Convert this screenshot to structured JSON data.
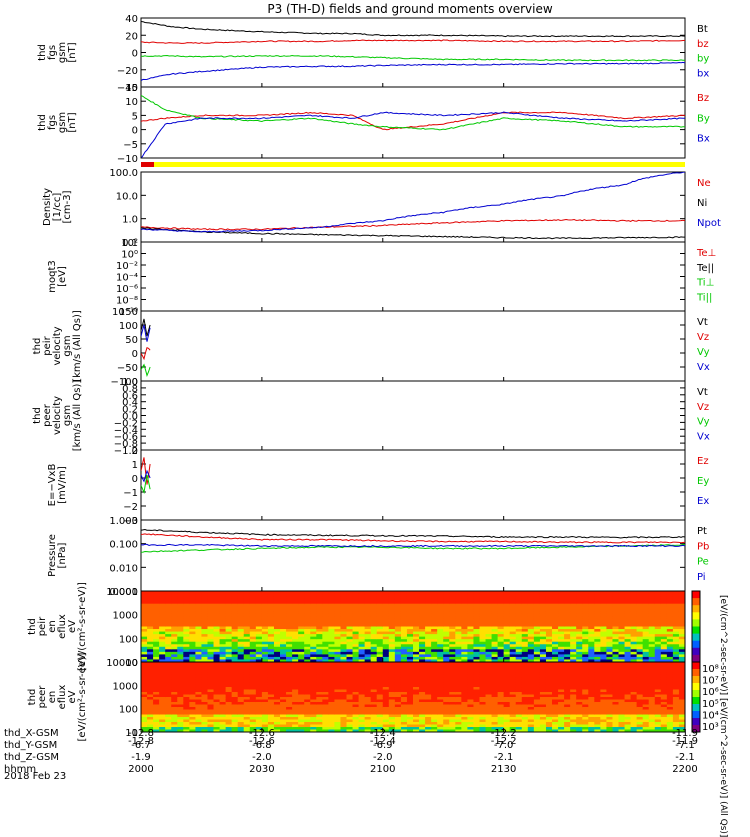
{
  "title": "P3 (TH-D) fields and ground moments overview",
  "date_label": "2018 Feb 23",
  "colorbar_label": "[eV/(cm^2-sec-sr-eV)] [eV/(cm^2-sec-sr-eV)] (All Qs)]",
  "x_axis": {
    "ticks": [
      -12.8,
      -12.6,
      -12.4,
      -12.2,
      -11.9
    ],
    "ephemeris": [
      {
        "name": "thd_X-GSM",
        "values": [
          "-12.8",
          "-12.6",
          "-12.4",
          "-12.2",
          "-11.9"
        ]
      },
      {
        "name": "thd_Y-GSM",
        "values": [
          "-6.7",
          "-6.8",
          "-6.9",
          "-7.0",
          "-7.1"
        ]
      },
      {
        "name": "thd_Z-GSM",
        "values": [
          "-1.9",
          "-2.0",
          "-2.0",
          "-2.1",
          "-2.1"
        ]
      },
      {
        "name": "hhmm",
        "values": [
          "2000",
          "2030",
          "2100",
          "2130",
          "2200"
        ]
      }
    ]
  },
  "colors": {
    "black": "#000000",
    "red": "#e00000",
    "green": "#00c800",
    "blue": "#0000d0",
    "yellow": "#ffff00"
  },
  "chart_data": [
    {
      "type": "line",
      "panel": "fgs_gsm_1",
      "ylabel": [
        "thd",
        "fgs",
        "gsm",
        "[nT]"
      ],
      "ylim": [
        -40,
        40
      ],
      "yticks": [
        "40",
        "20",
        "0",
        "−20",
        "−40"
      ],
      "x": [
        -12.8,
        -12.75,
        -12.7,
        -12.6,
        -12.5,
        -12.45,
        -12.4,
        -12.3,
        -12.2,
        -12.1,
        -12.0,
        -11.9
      ],
      "series": [
        {
          "name": "Bt",
          "color": "black",
          "values": [
            36,
            30,
            27,
            24,
            22,
            22,
            20,
            20,
            19,
            19,
            19,
            19
          ]
        },
        {
          "name": "bz",
          "color": "red",
          "values": [
            12,
            11,
            11,
            13,
            13,
            14,
            14,
            14,
            13,
            13,
            13,
            14
          ]
        },
        {
          "name": "by",
          "color": "green",
          "values": [
            -4,
            -4,
            -5,
            -4,
            -4,
            -5,
            -6,
            -8,
            -8,
            -9,
            -9,
            -9
          ]
        },
        {
          "name": "bx",
          "color": "blue",
          "values": [
            -32,
            -25,
            -22,
            -17,
            -16,
            -16,
            -15,
            -14,
            -14,
            -13,
            -13,
            -12
          ]
        }
      ]
    },
    {
      "type": "line",
      "panel": "fgs_gsm_2",
      "ylabel": [
        "thd",
        "fgs",
        "gsm",
        "[nT]"
      ],
      "ylim": [
        -10,
        15
      ],
      "yticks": [
        "15",
        "10",
        "5",
        "0",
        "−5",
        "−10"
      ],
      "x": [
        -12.8,
        -12.76,
        -12.7,
        -12.6,
        -12.52,
        -12.45,
        -12.4,
        -12.3,
        -12.2,
        -12.1,
        -12.0,
        -11.9
      ],
      "series": [
        {
          "name": "Bz",
          "color": "red",
          "values": [
            3,
            4,
            5,
            5,
            6,
            5,
            0,
            2,
            6,
            6,
            4,
            5
          ]
        },
        {
          "name": "By",
          "color": "green",
          "values": [
            12,
            7,
            4,
            3,
            4,
            2,
            1,
            0,
            4,
            3,
            1,
            1
          ]
        },
        {
          "name": "Bx",
          "color": "blue",
          "values": [
            -10,
            2,
            4,
            4,
            5,
            4,
            6,
            5,
            6,
            4,
            3,
            4
          ]
        }
      ]
    },
    {
      "type": "line",
      "panel": "density",
      "ylabel": [
        "Density",
        "[1/cc]",
        "[cm-3]"
      ],
      "yscale": "log",
      "ylim": [
        0.1,
        200
      ],
      "yticks": [
        "100.0",
        "10.0",
        "1.0",
        "0.1"
      ],
      "x": [
        -12.8,
        -12.7,
        -12.6,
        -12.5,
        -12.4,
        -12.3,
        -12.2,
        -12.1,
        -12.0,
        -11.9
      ],
      "series": [
        {
          "name": "Ne",
          "color": "red",
          "values": [
            0.5,
            0.4,
            0.4,
            0.5,
            0.6,
            0.8,
            1.0,
            1.1,
            1.0,
            1.0
          ]
        },
        {
          "name": "Ni",
          "color": "black",
          "values": [
            0.45,
            0.3,
            0.25,
            0.22,
            0.2,
            0.18,
            0.16,
            0.15,
            0.16,
            0.17
          ]
        },
        {
          "name": "Npot",
          "color": "blue",
          "values": [
            0.4,
            0.3,
            0.35,
            0.5,
            1.0,
            2.5,
            6.0,
            15.0,
            50.0,
            200.0
          ]
        }
      ]
    },
    {
      "type": "line",
      "panel": "temperature",
      "ylabel": [
        "moqt3",
        "[eV]"
      ],
      "yscale": "log",
      "ylim": [
        1e-10,
        100
      ],
      "yticks": [
        "10²",
        "10⁰",
        "10⁻²",
        "10⁻⁴",
        "10⁻⁶",
        "10⁻⁸",
        "10⁻¹⁰"
      ],
      "series": [
        {
          "name": "Te⊥",
          "color": "red"
        },
        {
          "name": "Te||",
          "color": "black"
        },
        {
          "name": "Ti⊥",
          "color": "green"
        },
        {
          "name": "Ti||",
          "color": "green"
        }
      ]
    },
    {
      "type": "line",
      "panel": "peir_velocity",
      "ylabel": [
        "thd",
        "peir",
        "velocity",
        "gsm",
        "[km/s (All Qs)]"
      ],
      "ylim": [
        -100,
        150
      ],
      "yticks": [
        "150",
        "100",
        "50",
        "0",
        "−50",
        "−100"
      ],
      "x": [
        -12.8,
        -12.795,
        -12.79,
        -12.785
      ],
      "series": [
        {
          "name": "Vt",
          "color": "black",
          "values": [
            80,
            120,
            60,
            100
          ]
        },
        {
          "name": "Vz",
          "color": "red",
          "values": [
            0,
            -20,
            20,
            10
          ]
        },
        {
          "name": "Vy",
          "color": "green",
          "values": [
            -60,
            -40,
            -80,
            -50
          ]
        },
        {
          "name": "Vx",
          "color": "blue",
          "values": [
            60,
            100,
            40,
            90
          ]
        }
      ]
    },
    {
      "type": "line",
      "panel": "peer_velocity",
      "ylabel": [
        "thd",
        "peer",
        "velocity",
        "gsm",
        "[km/s (All Qs)]"
      ],
      "ylim": [
        -1.0,
        1.0
      ],
      "yticks": [
        "1.0",
        "0.8",
        "0.6",
        "0.4",
        "0.2",
        "0.0",
        "−0.2",
        "−0.4",
        "−0.6",
        "−0.8",
        "−1.0"
      ],
      "series": [
        {
          "name": "Vt",
          "color": "black"
        },
        {
          "name": "Vz",
          "color": "red"
        },
        {
          "name": "Vy",
          "color": "green"
        },
        {
          "name": "Vx",
          "color": "blue"
        }
      ]
    },
    {
      "type": "line",
      "panel": "efield",
      "ylabel": [
        "E=−VxB",
        "[mV/m]"
      ],
      "ylim": [
        -3,
        2
      ],
      "yticks": [
        "2",
        "1",
        "0",
        "−1",
        "−2",
        "−3"
      ],
      "x": [
        -12.8,
        -12.795,
        -12.79,
        -12.785
      ],
      "series": [
        {
          "name": "Ez",
          "color": "red",
          "values": [
            0.5,
            1.5,
            -0.5,
            1.0
          ]
        },
        {
          "name": "Ey",
          "color": "green",
          "values": [
            -0.5,
            -1.0,
            0.2,
            -0.8
          ]
        },
        {
          "name": "Ex",
          "color": "blue",
          "values": [
            0.2,
            -0.2,
            0.5,
            0.0
          ]
        }
      ]
    },
    {
      "type": "line",
      "panel": "pressure",
      "ylabel": [
        "Pressure",
        "[nPa]"
      ],
      "yscale": "log",
      "ylim": [
        0.001,
        1.2
      ],
      "yticks": [
        "1.000",
        "0.100",
        "0.010",
        "0.001"
      ],
      "x": [
        -12.8,
        -12.7,
        -12.6,
        -12.5,
        -12.4,
        -12.3,
        -12.2,
        -12.1,
        -12.0,
        -11.9
      ],
      "series": [
        {
          "name": "Pt",
          "color": "black",
          "values": [
            0.45,
            0.35,
            0.28,
            0.26,
            0.25,
            0.24,
            0.22,
            0.22,
            0.21,
            0.22
          ]
        },
        {
          "name": "Pb",
          "color": "red",
          "values": [
            0.3,
            0.22,
            0.17,
            0.17,
            0.15,
            0.14,
            0.14,
            0.13,
            0.13,
            0.13
          ]
        },
        {
          "name": "Pe",
          "color": "green",
          "values": [
            0.05,
            0.06,
            0.07,
            0.08,
            0.08,
            0.07,
            0.07,
            0.08,
            0.09,
            0.1
          ]
        },
        {
          "name": "Pi",
          "color": "blue",
          "values": [
            0.1,
            0.1,
            0.09,
            0.09,
            0.09,
            0.09,
            0.09,
            0.09,
            0.09,
            0.09
          ]
        }
      ]
    },
    {
      "type": "heatmap",
      "panel": "peir_spectrogram",
      "ylabel": [
        "thd",
        "peir",
        "en",
        "eflux",
        "eV",
        "[eV/(cm²-s-sr-eV)]"
      ],
      "yscale": "log",
      "ylim": [
        5,
        25000
      ],
      "yticks": [
        "10000",
        "1000",
        "100",
        "10"
      ]
    },
    {
      "type": "heatmap",
      "panel": "peer_spectrogram",
      "ylabel": [
        "thd",
        "peer",
        "en",
        "eflux",
        "eV",
        "[eV/(cm²-s-sr-eV)]"
      ],
      "yscale": "log",
      "ylim": [
        5,
        25000
      ],
      "yticks": [
        "10000",
        "1000",
        "100",
        "10"
      ],
      "colorbar_ticks": [
        "10⁸",
        "10⁷",
        "10⁶",
        "10⁵",
        "10⁴",
        "10³"
      ]
    }
  ]
}
